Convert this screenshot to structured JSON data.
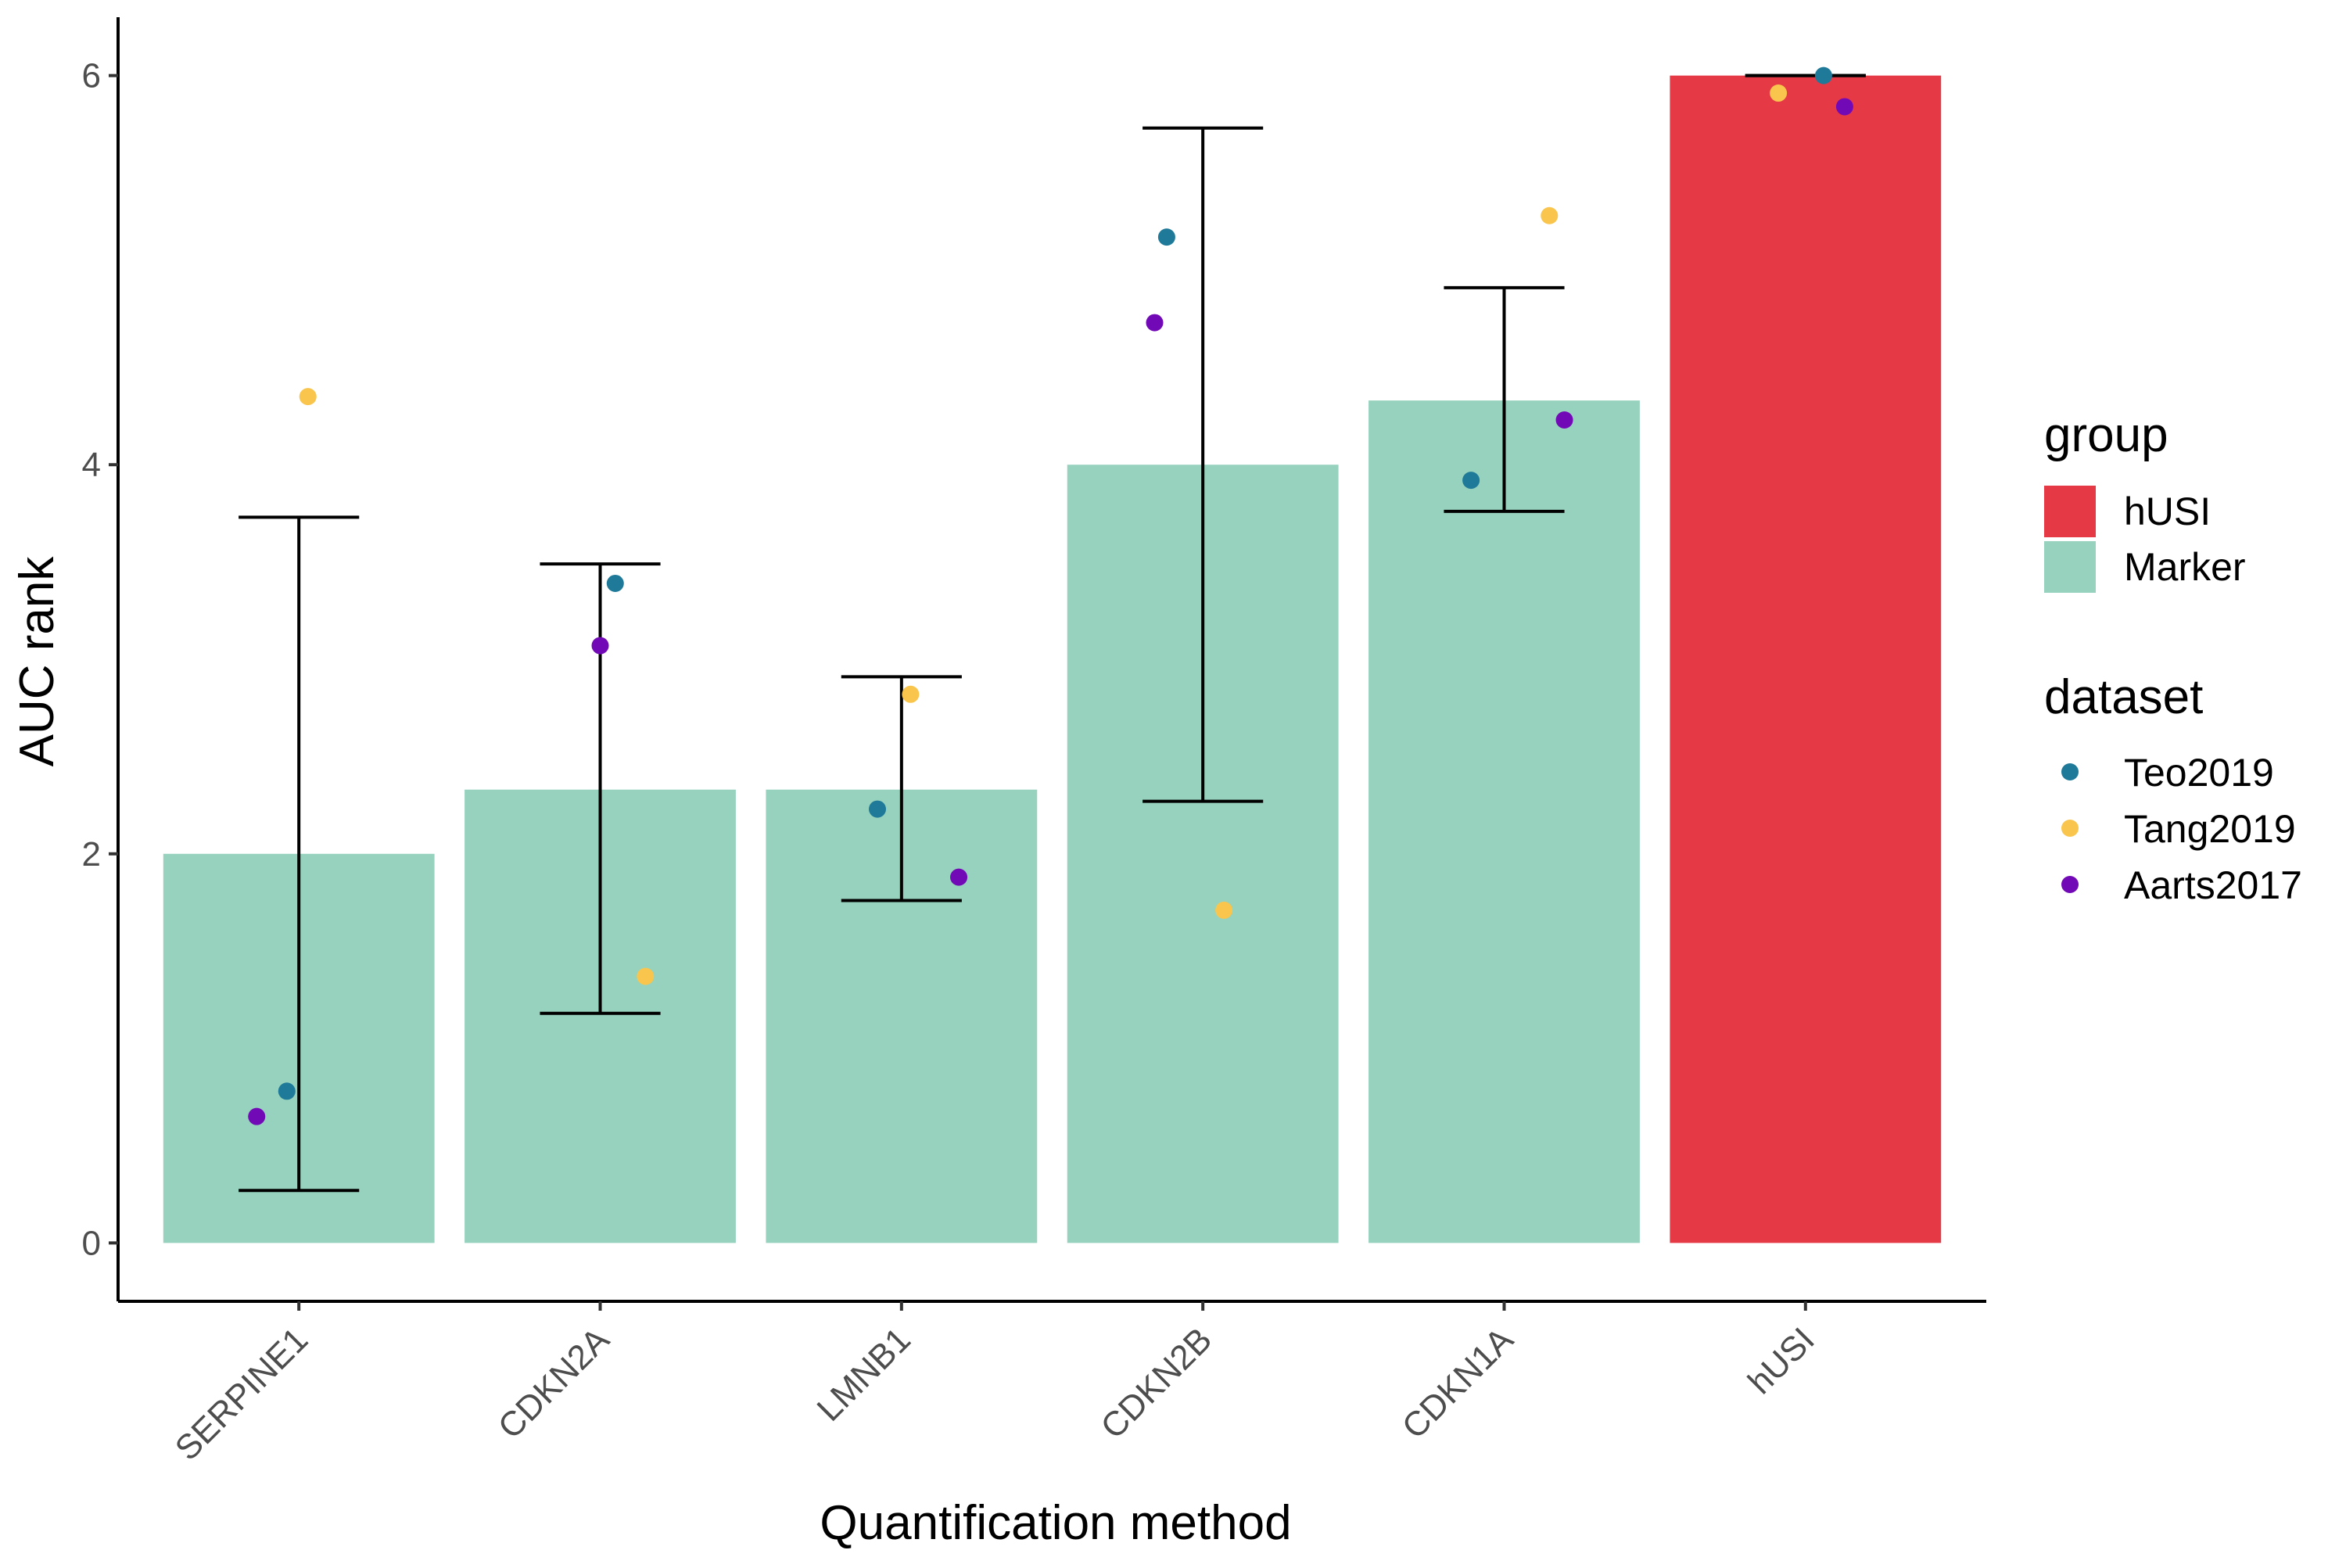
{
  "chart_data": {
    "type": "bar",
    "title": "",
    "xlabel": "Quantification method",
    "ylabel": "AUC rank",
    "ylim": [
      -0.3,
      6.3
    ],
    "yticks": [
      0,
      2,
      4,
      6
    ],
    "grid": false,
    "categories": [
      "SERPINE1",
      "CDKN2A",
      "LMNB1",
      "CDKN2B",
      "CDKN1A",
      "hUSI"
    ],
    "bars": [
      {
        "category": "SERPINE1",
        "value": 2.0,
        "group": "Marker",
        "error_low": 0.27,
        "error_high": 3.73
      },
      {
        "category": "CDKN2A",
        "value": 2.33,
        "group": "Marker",
        "error_low": 1.18,
        "error_high": 3.49
      },
      {
        "category": "LMNB1",
        "value": 2.33,
        "group": "Marker",
        "error_low": 1.76,
        "error_high": 2.91
      },
      {
        "category": "CDKN2B",
        "value": 4.0,
        "group": "Marker",
        "error_low": 2.27,
        "error_high": 5.73
      },
      {
        "category": "CDKN1A",
        "value": 4.33,
        "group": "Marker",
        "error_low": 3.76,
        "error_high": 4.91
      },
      {
        "category": "hUSI",
        "value": 6.0,
        "group": "hUSI",
        "error_low": 6.0,
        "error_high": 6.0
      }
    ],
    "points": [
      {
        "category": "SERPINE1",
        "dataset": "Teo2019",
        "y": 0.78,
        "jitter": -0.04
      },
      {
        "category": "SERPINE1",
        "dataset": "Tang2019",
        "y": 4.35,
        "jitter": 0.03
      },
      {
        "category": "SERPINE1",
        "dataset": "Aarts2017",
        "y": 0.65,
        "jitter": -0.14
      },
      {
        "category": "CDKN2A",
        "dataset": "Teo2019",
        "y": 3.39,
        "jitter": 0.05
      },
      {
        "category": "CDKN2A",
        "dataset": "Tang2019",
        "y": 1.37,
        "jitter": 0.15
      },
      {
        "category": "CDKN2A",
        "dataset": "Aarts2017",
        "y": 3.07,
        "jitter": 0.0
      },
      {
        "category": "LMNB1",
        "dataset": "Teo2019",
        "y": 2.23,
        "jitter": -0.08
      },
      {
        "category": "LMNB1",
        "dataset": "Tang2019",
        "y": 2.82,
        "jitter": 0.03
      },
      {
        "category": "LMNB1",
        "dataset": "Aarts2017",
        "y": 1.88,
        "jitter": 0.19
      },
      {
        "category": "CDKN2B",
        "dataset": "Teo2019",
        "y": 5.17,
        "jitter": -0.12
      },
      {
        "category": "CDKN2B",
        "dataset": "Tang2019",
        "y": 1.71,
        "jitter": 0.07
      },
      {
        "category": "CDKN2B",
        "dataset": "Aarts2017",
        "y": 4.73,
        "jitter": -0.16
      },
      {
        "category": "CDKN1A",
        "dataset": "Teo2019",
        "y": 3.92,
        "jitter": -0.11
      },
      {
        "category": "CDKN1A",
        "dataset": "Tang2019",
        "y": 5.28,
        "jitter": 0.15
      },
      {
        "category": "CDKN1A",
        "dataset": "Aarts2017",
        "y": 4.23,
        "jitter": 0.2
      },
      {
        "category": "hUSI",
        "dataset": "Teo2019",
        "y": 6.0,
        "jitter": 0.06
      },
      {
        "category": "hUSI",
        "dataset": "Tang2019",
        "y": 5.91,
        "jitter": -0.09
      },
      {
        "category": "hUSI",
        "dataset": "Aarts2017",
        "y": 5.84,
        "jitter": 0.13
      }
    ],
    "legend": {
      "placement": "right",
      "group": {
        "title": "group",
        "items": [
          {
            "label": "hUSI",
            "color": "#e63946"
          },
          {
            "label": "Marker",
            "color": "#96d2bd"
          }
        ]
      },
      "dataset": {
        "title": "dataset",
        "items": [
          {
            "label": "Teo2019",
            "color": "#1f7a99"
          },
          {
            "label": "Tang2019",
            "color": "#f9c54d"
          },
          {
            "label": "Aarts2017",
            "color": "#7209b7"
          }
        ]
      }
    }
  }
}
